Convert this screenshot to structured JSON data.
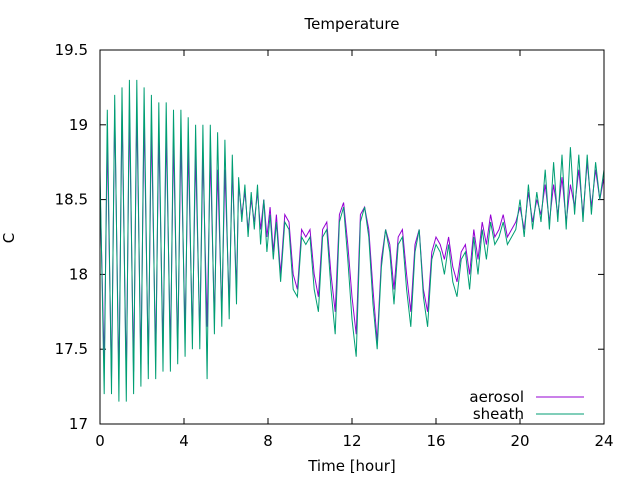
{
  "chart_data": {
    "type": "line",
    "title": "Temperature",
    "xlabel": "Time [hour]",
    "ylabel": "C",
    "xlim": [
      0,
      24
    ],
    "ylim": [
      17,
      19.5
    ],
    "xticks": [
      0,
      4,
      8,
      12,
      16,
      20,
      24
    ],
    "yticks": [
      17,
      17.5,
      18,
      18.5,
      19,
      19.5
    ],
    "ytick_labels": [
      "17",
      "17.5",
      "18",
      "18.5",
      "19",
      "19.5"
    ],
    "grid": false,
    "legend_position": "bottom-right",
    "series": [
      {
        "name": "aerosol",
        "color": "#9400d3",
        "x": [
          0,
          0.2,
          0.35,
          0.55,
          0.7,
          0.9,
          1.05,
          1.25,
          1.4,
          1.6,
          1.75,
          1.95,
          2.1,
          2.3,
          2.45,
          2.65,
          2.8,
          3.0,
          3.15,
          3.35,
          3.5,
          3.7,
          3.85,
          4.05,
          4.2,
          4.4,
          4.55,
          4.75,
          4.9,
          5.1,
          5.25,
          5.45,
          5.6,
          5.8,
          5.95,
          6.15,
          6.3,
          6.5,
          6.6,
          6.75,
          6.9,
          7.05,
          7.2,
          7.35,
          7.5,
          7.65,
          7.8,
          7.95,
          8.1,
          8.25,
          8.4,
          8.6,
          8.8,
          9.0,
          9.2,
          9.4,
          9.6,
          9.8,
          10.0,
          10.2,
          10.4,
          10.6,
          10.8,
          11.0,
          11.2,
          11.4,
          11.6,
          11.8,
          12.0,
          12.2,
          12.4,
          12.6,
          12.8,
          13.0,
          13.2,
          13.4,
          13.6,
          13.8,
          14.0,
          14.2,
          14.4,
          14.6,
          14.8,
          15.0,
          15.2,
          15.4,
          15.6,
          15.8,
          16.0,
          16.2,
          16.4,
          16.6,
          16.8,
          17.0,
          17.2,
          17.4,
          17.6,
          17.8,
          18.0,
          18.2,
          18.4,
          18.6,
          18.8,
          19.0,
          19.2,
          19.4,
          19.6,
          19.8,
          20.0,
          20.2,
          20.4,
          20.6,
          20.8,
          21.0,
          21.2,
          21.4,
          21.6,
          21.8,
          22.0,
          22.2,
          22.4,
          22.6,
          22.8,
          23.0,
          23.2,
          23.4,
          23.6,
          23.8,
          24.0
        ],
        "y": [
          18.6,
          17.4,
          18.9,
          17.3,
          19.1,
          17.3,
          19.1,
          17.3,
          19.1,
          17.35,
          19.1,
          17.4,
          19.05,
          17.4,
          19.0,
          17.45,
          18.95,
          17.5,
          18.95,
          17.5,
          18.9,
          17.5,
          18.9,
          17.6,
          18.85,
          17.6,
          18.8,
          17.6,
          18.8,
          17.65,
          18.8,
          17.7,
          18.7,
          17.75,
          18.7,
          17.8,
          18.7,
          17.9,
          18.6,
          18.4,
          18.55,
          18.3,
          18.5,
          18.35,
          18.55,
          18.3,
          18.5,
          18.25,
          18.45,
          18.15,
          18.4,
          18.0,
          18.4,
          18.35,
          18.0,
          17.9,
          18.3,
          18.25,
          18.3,
          18.0,
          17.85,
          18.3,
          18.35,
          18.0,
          17.75,
          18.4,
          18.48,
          18.2,
          17.85,
          17.6,
          18.4,
          18.45,
          18.3,
          17.9,
          17.55,
          18.1,
          18.3,
          18.2,
          17.9,
          18.25,
          18.3,
          18.0,
          17.75,
          18.2,
          18.3,
          17.9,
          17.75,
          18.15,
          18.25,
          18.2,
          18.1,
          18.25,
          18.05,
          17.95,
          18.15,
          18.2,
          18.0,
          18.3,
          18.1,
          18.35,
          18.2,
          18.4,
          18.25,
          18.3,
          18.4,
          18.25,
          18.3,
          18.35,
          18.45,
          18.3,
          18.55,
          18.35,
          18.5,
          18.4,
          18.6,
          18.35,
          18.6,
          18.4,
          18.65,
          18.35,
          18.6,
          18.45,
          18.7,
          18.4,
          18.75,
          18.45,
          18.7,
          18.5,
          18.65
        ]
      },
      {
        "name": "sheath",
        "color": "#009e73",
        "x": [
          0,
          0.2,
          0.35,
          0.55,
          0.7,
          0.9,
          1.05,
          1.25,
          1.4,
          1.6,
          1.75,
          1.95,
          2.1,
          2.3,
          2.45,
          2.65,
          2.8,
          3.0,
          3.15,
          3.35,
          3.5,
          3.7,
          3.85,
          4.05,
          4.2,
          4.4,
          4.55,
          4.75,
          4.9,
          5.1,
          5.25,
          5.45,
          5.6,
          5.8,
          5.95,
          6.15,
          6.3,
          6.5,
          6.6,
          6.75,
          6.9,
          7.05,
          7.2,
          7.35,
          7.5,
          7.65,
          7.8,
          7.95,
          8.1,
          8.25,
          8.4,
          8.6,
          8.8,
          9.0,
          9.2,
          9.4,
          9.6,
          9.8,
          10.0,
          10.2,
          10.4,
          10.6,
          10.8,
          11.0,
          11.2,
          11.4,
          11.6,
          11.8,
          12.0,
          12.2,
          12.4,
          12.6,
          12.8,
          13.0,
          13.2,
          13.4,
          13.6,
          13.8,
          14.0,
          14.2,
          14.4,
          14.6,
          14.8,
          15.0,
          15.2,
          15.4,
          15.6,
          15.8,
          16.0,
          16.2,
          16.4,
          16.6,
          16.8,
          17.0,
          17.2,
          17.4,
          17.6,
          17.8,
          18.0,
          18.2,
          18.4,
          18.6,
          18.8,
          19.0,
          19.2,
          19.4,
          19.6,
          19.8,
          20.0,
          20.2,
          20.4,
          20.6,
          20.8,
          21.0,
          21.2,
          21.4,
          21.6,
          21.8,
          22.0,
          22.2,
          22.4,
          22.6,
          22.8,
          23.0,
          23.2,
          23.4,
          23.6,
          23.8,
          24.0
        ],
        "y": [
          18.7,
          17.2,
          19.1,
          17.2,
          19.2,
          17.15,
          19.25,
          17.15,
          19.3,
          17.2,
          19.3,
          17.25,
          19.25,
          17.3,
          19.2,
          17.3,
          19.15,
          17.35,
          19.15,
          17.35,
          19.1,
          17.4,
          19.1,
          17.45,
          19.05,
          17.5,
          19.0,
          17.5,
          19.0,
          17.3,
          19.0,
          17.6,
          18.95,
          17.65,
          18.9,
          17.7,
          18.8,
          17.8,
          18.65,
          18.35,
          18.6,
          18.25,
          18.55,
          18.3,
          18.6,
          18.2,
          18.5,
          18.15,
          18.4,
          18.1,
          18.35,
          17.95,
          18.35,
          18.3,
          17.9,
          17.85,
          18.25,
          18.2,
          18.25,
          17.9,
          17.75,
          18.25,
          18.3,
          17.9,
          17.6,
          18.35,
          18.45,
          18.1,
          17.7,
          17.45,
          18.35,
          18.45,
          18.25,
          17.8,
          17.5,
          18.05,
          18.3,
          18.15,
          17.8,
          18.2,
          18.25,
          17.9,
          17.65,
          18.15,
          18.3,
          17.85,
          17.65,
          18.1,
          18.2,
          18.15,
          18.0,
          18.2,
          17.95,
          17.85,
          18.1,
          18.15,
          17.9,
          18.25,
          18.0,
          18.3,
          18.1,
          18.35,
          18.2,
          18.25,
          18.35,
          18.2,
          18.25,
          18.3,
          18.5,
          18.25,
          18.6,
          18.3,
          18.55,
          18.35,
          18.7,
          18.3,
          18.75,
          18.35,
          18.8,
          18.3,
          18.85,
          18.4,
          18.8,
          18.35,
          18.8,
          18.4,
          18.75,
          18.5,
          18.7
        ]
      }
    ]
  }
}
